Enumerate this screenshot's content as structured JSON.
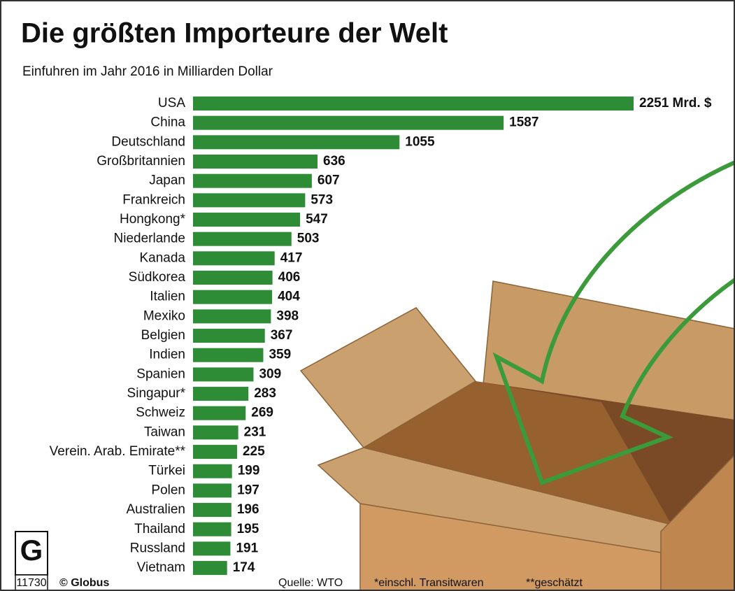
{
  "chart_data": {
    "type": "bar",
    "orientation": "horizontal",
    "title": "Die größten Importeure der Welt",
    "subtitle": "Einfuhren im Jahr 2016 in Milliarden Dollar",
    "categories": [
      "USA",
      "China",
      "Deutschland",
      "Großbritannien",
      "Japan",
      "Frankreich",
      "Hongkong*",
      "Niederlande",
      "Kanada",
      "Südkorea",
      "Italien",
      "Mexiko",
      "Belgien",
      "Indien",
      "Spanien",
      "Singapur*",
      "Schweiz",
      "Taiwan",
      "Verein. Arab. Emirate**",
      "Türkei",
      "Polen",
      "Australien",
      "Thailand",
      "Russland",
      "Vietnam"
    ],
    "values": [
      2251,
      1587,
      1055,
      636,
      607,
      573,
      547,
      503,
      417,
      406,
      404,
      398,
      367,
      359,
      309,
      283,
      269,
      231,
      225,
      199,
      197,
      196,
      195,
      191,
      174
    ],
    "value_labels": [
      "2251 Mrd. $",
      "1587",
      "1055",
      "636",
      "607",
      "573",
      "547",
      "503",
      "417",
      "406",
      "404",
      "398",
      "367",
      "359",
      "309",
      "283",
      "269",
      "231",
      "225",
      "199",
      "197",
      "196",
      "195",
      "191",
      "174"
    ],
    "color": "#2e8b36",
    "credit": "© Globus",
    "code": "11730",
    "source": "Quelle: WTO",
    "notes": [
      "*einschl. Transitwaren",
      "**geschätzt"
    ]
  }
}
